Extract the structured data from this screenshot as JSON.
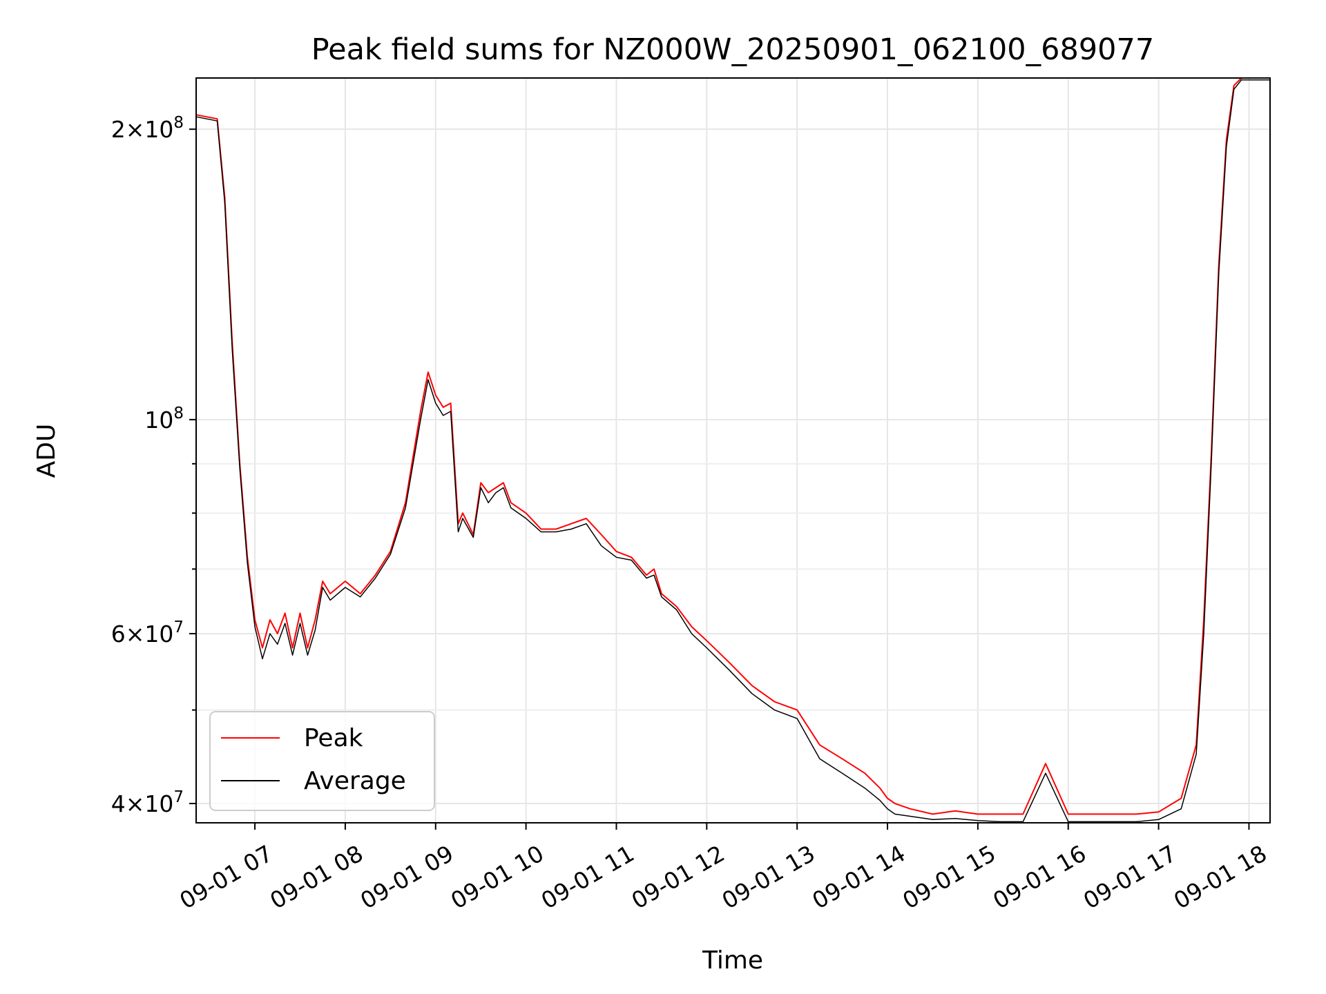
{
  "chart_data": {
    "type": "line",
    "title": "Peak field sums for NZ000W_20250901_062100_689077",
    "xlabel": "Time",
    "ylabel": "ADU",
    "yscale": "log",
    "ylim": [
      38200000,
      226000000
    ],
    "xlim": [
      "09-01 06:21",
      "09-01 18:14"
    ],
    "grid": true,
    "legend_position": "lower-left",
    "x_ticks": [
      "09-01 07",
      "09-01 08",
      "09-01 09",
      "09-01 10",
      "09-01 11",
      "09-01 12",
      "09-01 13",
      "09-01 14",
      "09-01 15",
      "09-01 16",
      "09-01 17",
      "09-01 18"
    ],
    "y_ticks": [
      {
        "value": 40000000,
        "base": "4×10",
        "exp": "7"
      },
      {
        "value": 60000000,
        "base": "6×10",
        "exp": "7"
      },
      {
        "value": 100000000,
        "base": "10",
        "exp": "8"
      },
      {
        "value": 200000000,
        "base": "2×10",
        "exp": "8"
      }
    ],
    "series": [
      {
        "name": "Peak",
        "color": "#ff0000",
        "x": [
          "09-01 06:21",
          "09-01 06:35",
          "09-01 06:40",
          "09-01 06:45",
          "09-01 06:50",
          "09-01 06:55",
          "09-01 07:00",
          "09-01 07:05",
          "09-01 07:10",
          "09-01 07:15",
          "09-01 07:20",
          "09-01 07:25",
          "09-01 07:30",
          "09-01 07:35",
          "09-01 07:40",
          "09-01 07:45",
          "09-01 07:50",
          "09-01 08:00",
          "09-01 08:10",
          "09-01 08:20",
          "09-01 08:30",
          "09-01 08:40",
          "09-01 08:50",
          "09-01 08:55",
          "09-01 09:00",
          "09-01 09:05",
          "09-01 09:10",
          "09-01 09:15",
          "09-01 09:18",
          "09-01 09:25",
          "09-01 09:30",
          "09-01 09:35",
          "09-01 09:40",
          "09-01 09:45",
          "09-01 09:50",
          "09-01 10:00",
          "09-01 10:10",
          "09-01 10:20",
          "09-01 10:30",
          "09-01 10:40",
          "09-01 10:50",
          "09-01 11:00",
          "09-01 11:10",
          "09-01 11:20",
          "09-01 11:25",
          "09-01 11:30",
          "09-01 11:40",
          "09-01 11:50",
          "09-01 12:00",
          "09-01 12:15",
          "09-01 12:30",
          "09-01 12:45",
          "09-01 13:00",
          "09-01 13:15",
          "09-01 13:30",
          "09-01 13:45",
          "09-01 13:55",
          "09-01 14:00",
          "09-01 14:05",
          "09-01 14:15",
          "09-01 14:30",
          "09-01 14:45",
          "09-01 15:00",
          "09-01 15:15",
          "09-01 15:30",
          "09-01 15:45",
          "09-01 16:00",
          "09-01 16:05",
          "09-01 16:10",
          "09-01 16:15",
          "09-01 16:30",
          "09-01 16:45",
          "09-01 17:00",
          "09-01 17:15",
          "09-01 17:25",
          "09-01 17:30",
          "09-01 17:35",
          "09-01 17:40",
          "09-01 17:45",
          "09-01 17:50",
          "09-01 17:55",
          "09-01 18:00",
          "09-01 18:05",
          "09-01 18:14"
        ],
        "values": [
          207000000,
          205000000,
          170000000,
          120000000,
          90000000,
          72000000,
          62000000,
          58000000,
          62000000,
          60000000,
          63000000,
          58000000,
          63000000,
          58000000,
          62000000,
          68000000,
          66000000,
          68000000,
          66000000,
          69000000,
          73000000,
          82000000,
          102000000,
          112000000,
          106000000,
          103000000,
          104000000,
          78000000,
          80000000,
          76000000,
          86000000,
          84000000,
          85000000,
          86000000,
          82000000,
          80000000,
          77000000,
          77000000,
          78000000,
          79000000,
          76000000,
          73000000,
          72000000,
          69000000,
          70000000,
          66000000,
          64000000,
          61000000,
          59000000,
          56000000,
          53000000,
          51000000,
          50000000,
          46000000,
          44500000,
          43000000,
          41500000,
          40500000,
          40000000,
          39500000,
          39000000,
          39300000,
          39000000,
          39000000,
          39000000,
          44000000,
          39000000,
          39000000,
          39000000,
          39000000,
          39000000,
          39000000,
          39200000,
          40500000,
          46000000,
          62000000,
          92000000,
          145000000,
          195000000,
          222000000,
          226000000,
          226000000,
          226000000,
          226000000
        ]
      },
      {
        "name": "Average",
        "color": "#000000",
        "x": [
          "09-01 06:21",
          "09-01 06:35",
          "09-01 06:40",
          "09-01 06:45",
          "09-01 06:50",
          "09-01 06:55",
          "09-01 07:00",
          "09-01 07:05",
          "09-01 07:10",
          "09-01 07:15",
          "09-01 07:20",
          "09-01 07:25",
          "09-01 07:30",
          "09-01 07:35",
          "09-01 07:40",
          "09-01 07:45",
          "09-01 07:50",
          "09-01 08:00",
          "09-01 08:10",
          "09-01 08:20",
          "09-01 08:30",
          "09-01 08:40",
          "09-01 08:50",
          "09-01 08:55",
          "09-01 09:00",
          "09-01 09:05",
          "09-01 09:10",
          "09-01 09:15",
          "09-01 09:18",
          "09-01 09:25",
          "09-01 09:30",
          "09-01 09:35",
          "09-01 09:40",
          "09-01 09:45",
          "09-01 09:50",
          "09-01 10:00",
          "09-01 10:10",
          "09-01 10:20",
          "09-01 10:30",
          "09-01 10:40",
          "09-01 10:50",
          "09-01 11:00",
          "09-01 11:10",
          "09-01 11:20",
          "09-01 11:25",
          "09-01 11:30",
          "09-01 11:40",
          "09-01 11:50",
          "09-01 12:00",
          "09-01 12:15",
          "09-01 12:30",
          "09-01 12:45",
          "09-01 13:00",
          "09-01 13:15",
          "09-01 13:30",
          "09-01 13:45",
          "09-01 13:55",
          "09-01 14:00",
          "09-01 14:05",
          "09-01 14:15",
          "09-01 14:30",
          "09-01 14:45",
          "09-01 15:00",
          "09-01 15:15",
          "09-01 15:30",
          "09-01 15:45",
          "09-01 16:00",
          "09-01 16:05",
          "09-01 16:10",
          "09-01 16:15",
          "09-01 16:30",
          "09-01 16:45",
          "09-01 17:00",
          "09-01 17:15",
          "09-01 17:25",
          "09-01 17:30",
          "09-01 17:35",
          "09-01 17:40",
          "09-01 17:45",
          "09-01 17:50",
          "09-01 17:55",
          "09-01 18:00",
          "09-01 18:05",
          "09-01 18:14"
        ],
        "values": [
          206000000,
          204000000,
          168000000,
          118000000,
          89000000,
          71000000,
          61000000,
          56500000,
          60000000,
          58500000,
          61500000,
          57000000,
          61500000,
          57000000,
          60500000,
          67000000,
          65000000,
          67000000,
          65500000,
          68500000,
          72500000,
          81000000,
          100000000,
          110000000,
          104000000,
          101000000,
          102000000,
          76500000,
          79000000,
          75500000,
          85000000,
          82000000,
          84000000,
          85000000,
          81000000,
          79000000,
          76500000,
          76500000,
          77000000,
          78000000,
          74000000,
          72000000,
          71500000,
          68500000,
          69000000,
          65500000,
          63500000,
          60000000,
          58000000,
          55000000,
          52000000,
          50000000,
          49000000,
          44500000,
          43000000,
          41500000,
          40300000,
          39500000,
          39000000,
          38800000,
          38500000,
          38600000,
          38400000,
          38300000,
          38300000,
          43000000,
          38300000,
          38300000,
          38300000,
          38300000,
          38300000,
          38300000,
          38500000,
          39500000,
          45000000,
          60000000,
          90000000,
          142000000,
          192000000,
          220000000,
          225000000,
          225000000,
          225000000,
          225000000
        ]
      }
    ]
  }
}
